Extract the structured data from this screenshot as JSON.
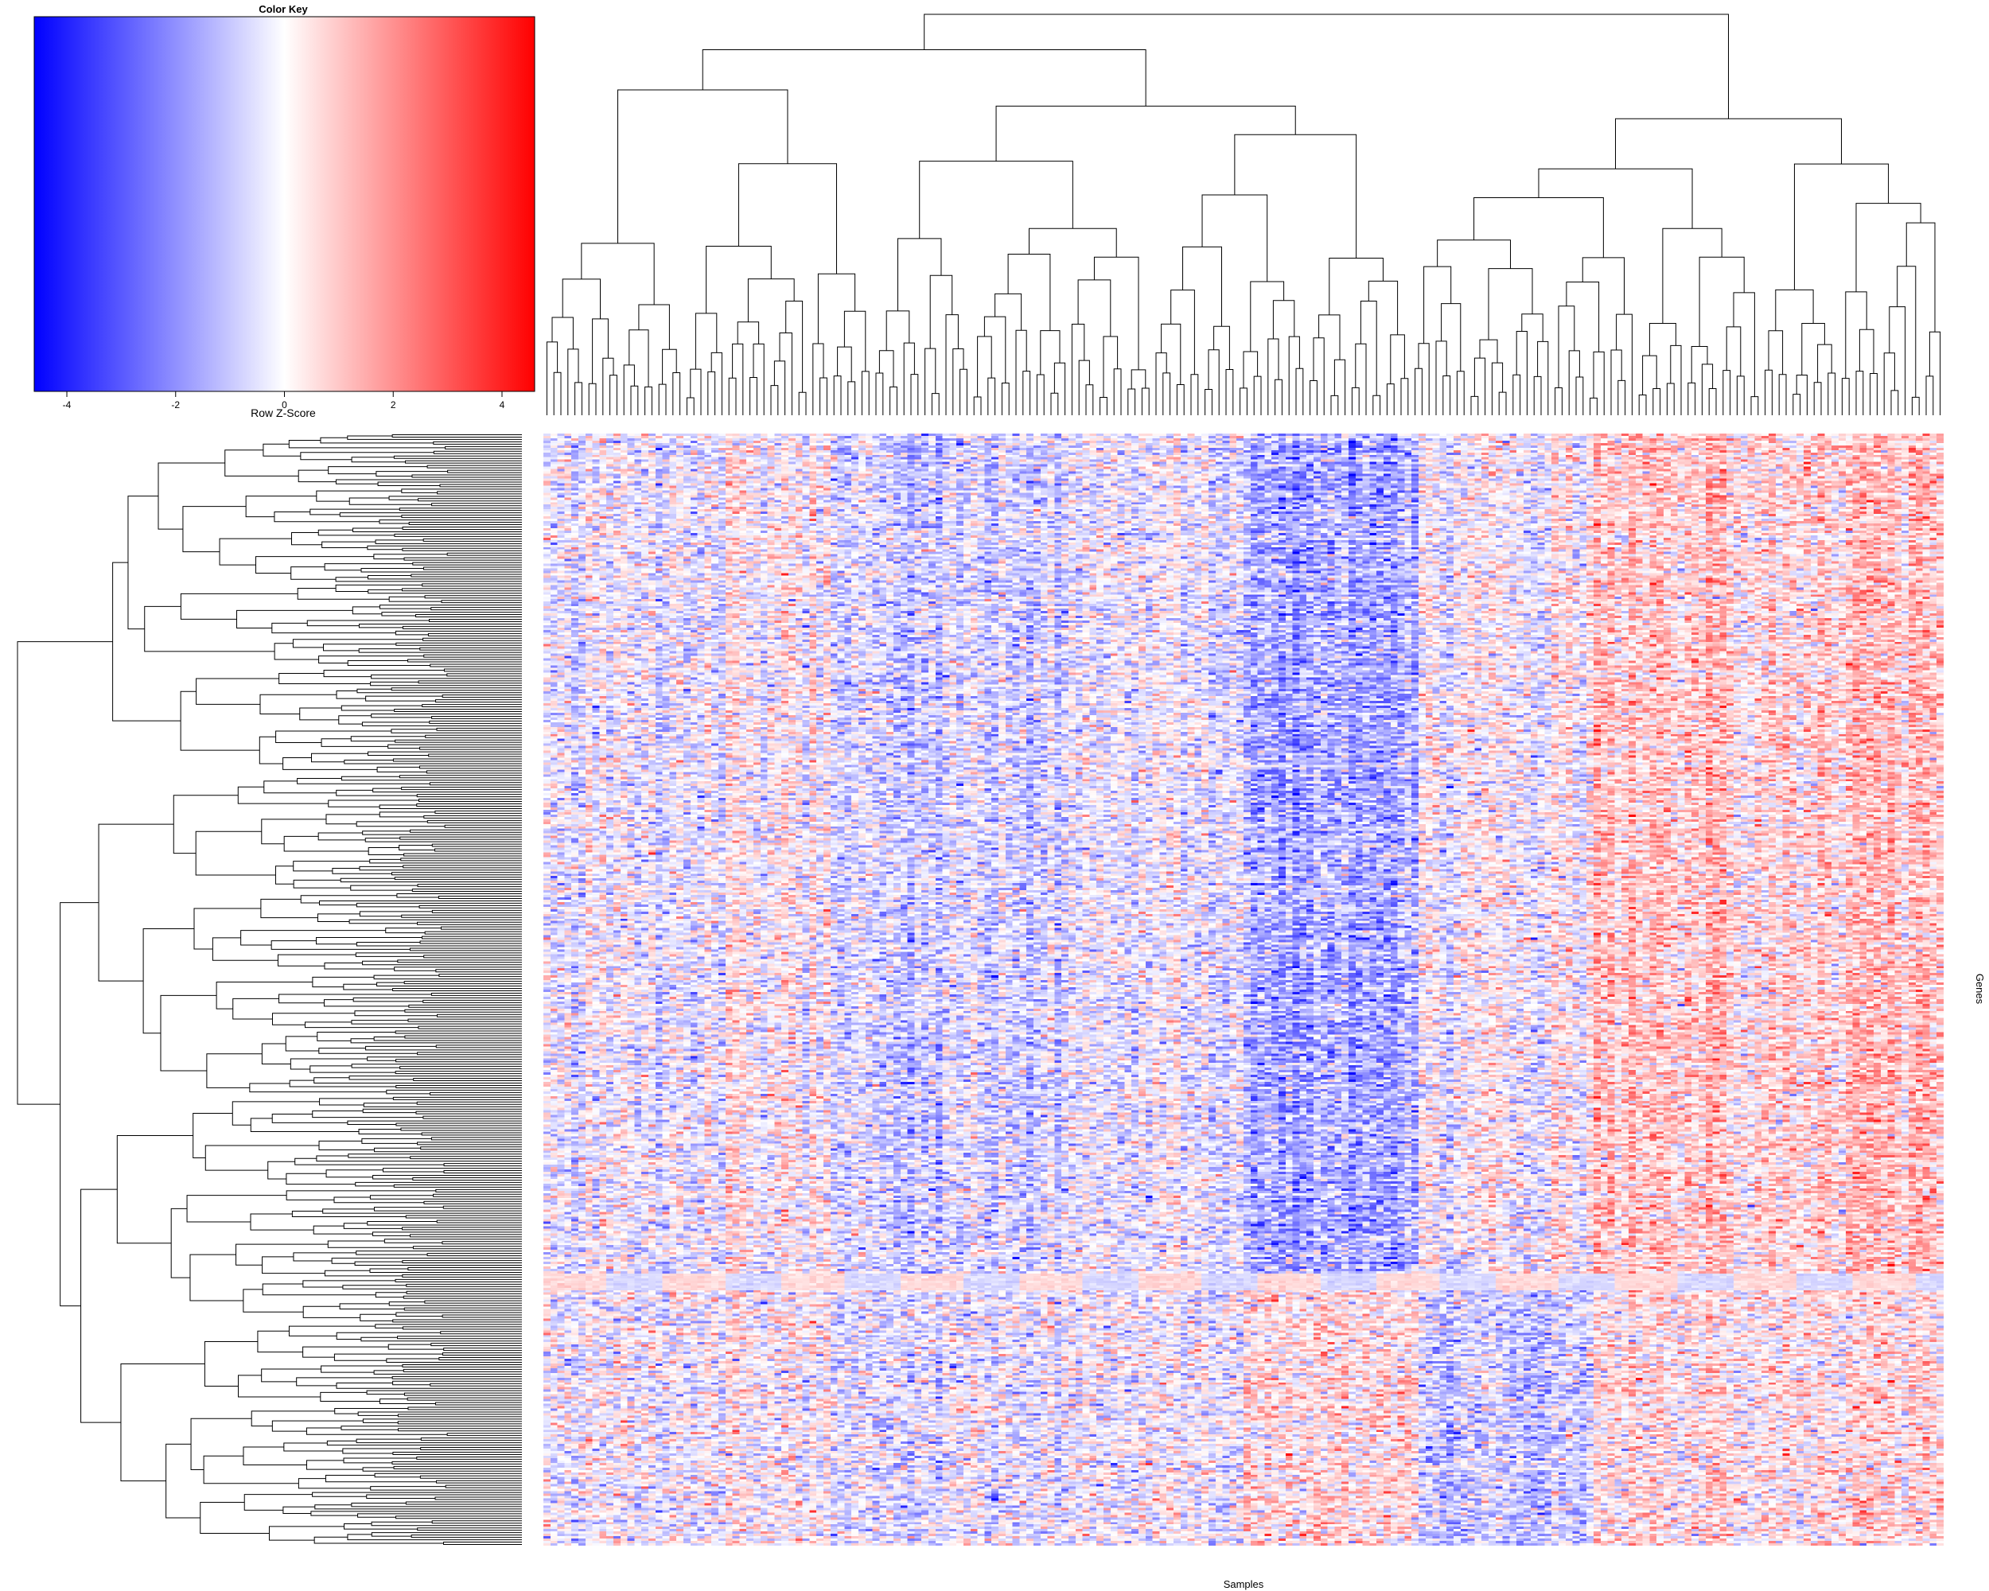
{
  "chart_data": {
    "type": "heatmap",
    "color_key": {
      "title": "Color Key",
      "xlabel": "Row Z-Score",
      "range": [
        -4.6,
        4.6
      ],
      "ticks": [
        -4,
        -2,
        0,
        2,
        4
      ],
      "tick_labels": [
        "-4",
        "-2",
        "0",
        "2",
        "4"
      ],
      "colors": {
        "low": "#0000ff",
        "mid": "#ffffff",
        "high": "#ff0000"
      }
    },
    "xlabel": "Samples",
    "ylabel": "Genes",
    "n_samples": 200,
    "n_genes": 470,
    "column_blocks": [
      {
        "cols": [
          0,
          25
        ],
        "mean_z": -0.3
      },
      {
        "cols": [
          25,
          50
        ],
        "mean_z": -0.1
      },
      {
        "cols": [
          50,
          75
        ],
        "mean_z": -0.7
      },
      {
        "cols": [
          75,
          100
        ],
        "mean_z": -0.2
      },
      {
        "cols": [
          100,
          125
        ],
        "mean_z": -1.4
      },
      {
        "cols": [
          125,
          150
        ],
        "mean_z": 0.0
      },
      {
        "cols": [
          150,
          170
        ],
        "mean_z": 0.9
      },
      {
        "cols": [
          170,
          185
        ],
        "mean_z": 0.4
      },
      {
        "cols": [
          185,
          200
        ],
        "mean_z": 1.1
      }
    ],
    "row_blocks": [
      {
        "rows": [
          0,
          355
        ],
        "pattern": "as column blocks"
      },
      {
        "rows": [
          355,
          362
        ],
        "pattern": "uniform band",
        "mean_z": 0.6
      },
      {
        "rows": [
          362,
          470
        ],
        "pattern": "partially inverted",
        "mean_z": 0.0
      }
    ]
  }
}
